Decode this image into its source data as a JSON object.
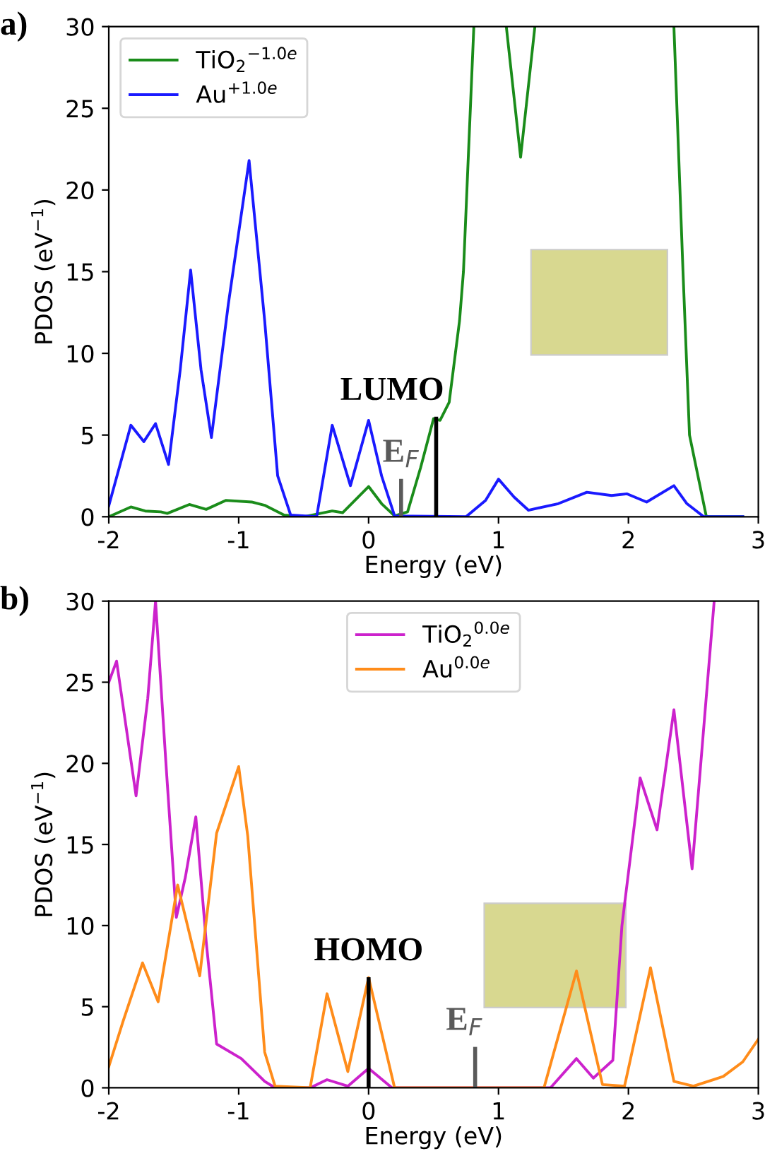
{
  "chart_data": [
    {
      "type": "line",
      "title": "a)",
      "xlabel": "Energy (eV)",
      "ylabel": "PDOS (eV$^{−1}$)",
      "xlim": [
        -2,
        3
      ],
      "ylim": [
        0,
        30
      ],
      "xticks": [
        -2,
        -1,
        0,
        1,
        2,
        3
      ],
      "yticks": [
        0,
        5,
        10,
        15,
        20,
        25,
        30
      ],
      "grid": false,
      "legend": "top left",
      "series": [
        {
          "name": "TiO$_{2}$$^{−1.0e}$",
          "color": "#1a8c1a",
          "x": [
            -2,
            -1.83,
            -1.72,
            -1.6,
            -1.55,
            -1.38,
            -1.25,
            -1.1,
            -0.9,
            -0.8,
            -0.65,
            -0.5,
            -0.28,
            -0.2,
            0.0,
            0.1,
            0.2,
            0.3,
            0.4,
            0.5,
            0.55,
            0.62,
            0.7,
            0.73,
            0.81,
            0.9,
            1.06,
            1.17,
            1.28,
            1.8,
            2.35,
            2.42,
            2.47,
            2.6,
            2.88
          ],
          "values": [
            0,
            0.6,
            0.35,
            0.3,
            0.2,
            0.75,
            0.45,
            1.0,
            0.9,
            0.7,
            0.1,
            0,
            0.35,
            0.25,
            1.85,
            0.8,
            0.05,
            0.3,
            3,
            6.0,
            5.9,
            7,
            12,
            15,
            30,
            null,
            30,
            22.0,
            30,
            null,
            30,
            15,
            5,
            0,
            0
          ]
        },
        {
          "name": "Au$^{+1.0e}$",
          "color": "#1a1aff",
          "x": [
            -2,
            -1.83,
            -1.73,
            -1.64,
            -1.54,
            -1.45,
            -1.37,
            -1.29,
            -1.21,
            -1.08,
            -0.92,
            -0.8,
            -0.7,
            -0.6,
            -0.4,
            -0.28,
            -0.14,
            0.0,
            0.1,
            0.2,
            0.75,
            0.9,
            1.0,
            1.12,
            1.23,
            1.46,
            1.68,
            1.87,
            1.99,
            2.14,
            2.35,
            2.45,
            2.58,
            2.88
          ],
          "values": [
            0.67,
            5.6,
            4.6,
            5.7,
            3.2,
            9,
            15.1,
            9,
            4.85,
            13,
            21.8,
            12,
            2.5,
            0.1,
            0,
            5.6,
            1.9,
            5.9,
            2.5,
            0.05,
            0,
            1.0,
            2.3,
            1.2,
            0.4,
            0.8,
            1.5,
            1.3,
            1.4,
            0.9,
            1.9,
            0.8,
            0,
            0
          ]
        },
        {
          "color": "#5a5a5a",
          "x": [
            0.25,
            0.25
          ],
          "values": [
            0,
            2.2
          ]
        },
        {
          "color": "#000000",
          "x": [
            0.52,
            0.52
          ],
          "values": [
            0,
            6.0
          ]
        }
      ],
      "annotations": [
        {
          "text": "E$_{F}$",
          "x": 0.25,
          "y": 2.2
        },
        {
          "text": "LUMO",
          "x": 0.52,
          "y": 6.0
        }
      ]
    },
    {
      "type": "line",
      "title": "b)",
      "xlabel": "Energy (eV)",
      "ylabel": "PDOS (eV$^{−1}$)",
      "xlim": [
        -2,
        3
      ],
      "ylim": [
        0,
        30
      ],
      "xticks": [
        -2,
        -1,
        0,
        1,
        2,
        3
      ],
      "yticks": [
        0,
        5,
        10,
        15,
        20,
        25,
        30
      ],
      "grid": false,
      "legend": "top",
      "series": [
        {
          "name": "TiO$_{2}$$^{0.0e}$",
          "color": "#cc22cc",
          "x": [
            -2,
            -1.94,
            -1.79,
            -1.7,
            -1.64,
            -1.56,
            -1.48,
            -1.41,
            -1.33,
            -1.25,
            -1.17,
            -0.98,
            -0.8,
            -0.72,
            -0.45,
            -0.32,
            -0.16,
            0.0,
            0.18,
            1.4,
            1.6,
            1.73,
            1.88,
            1.95,
            2.09,
            2.22,
            2.35,
            2.49,
            2.66
          ],
          "values": [
            25,
            26.3,
            18.0,
            24,
            30,
            20,
            10.5,
            13,
            16.7,
            9,
            2.7,
            1.8,
            0.4,
            0,
            0,
            0.5,
            0.1,
            1.2,
            0,
            0,
            1.8,
            0.6,
            1.7,
            10,
            19.1,
            15.9,
            23.3,
            13.5,
            30
          ]
        },
        {
          "name": "Au$^{0.0e}$",
          "color": "#ff8c1a",
          "x": [
            -2,
            -1.89,
            -1.74,
            -1.62,
            -1.47,
            -1.3,
            -1.17,
            -1.0,
            -0.93,
            -0.8,
            -0.72,
            -0.45,
            -0.32,
            -0.16,
            0.0,
            0.2,
            1.35,
            1.6,
            1.8,
            1.97,
            2.17,
            2.35,
            2.5,
            2.73,
            2.88,
            3.0
          ],
          "values": [
            1.3,
            4.1,
            7.7,
            5.3,
            12.5,
            6.9,
            15.7,
            19.8,
            15.5,
            2.2,
            0.1,
            0,
            5.8,
            1.0,
            6.8,
            0,
            0,
            7.2,
            0.2,
            0.1,
            7.4,
            0.4,
            0.1,
            0.7,
            1.6,
            3.0
          ]
        },
        {
          "color": "#000000",
          "x": [
            0.0,
            0.0
          ],
          "values": [
            0,
            6.7
          ]
        },
        {
          "color": "#5a5a5a",
          "x": [
            0.82,
            0.82
          ],
          "values": [
            0,
            2.4
          ]
        }
      ],
      "annotations": [
        {
          "text": "HOMO",
          "x": 0.0,
          "y": 6.7
        },
        {
          "text": "E$_{F}$",
          "x": 0.82,
          "y": 2.4
        }
      ]
    }
  ]
}
